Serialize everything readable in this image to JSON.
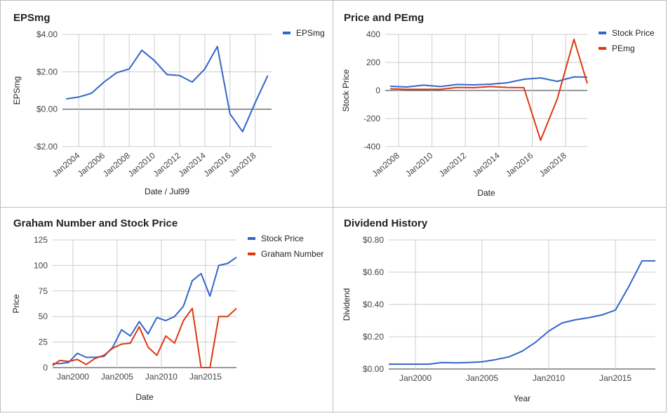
{
  "chart_data": [
    {
      "id": "eps",
      "type": "line",
      "title": "EPSmg",
      "xlabel": "Date / Jul99",
      "ylabel": "EPSmg",
      "xlim": [
        2002.7,
        2019.3
      ],
      "ylim": [
        -2,
        4
      ],
      "yticks": [
        -2,
        0,
        2,
        4
      ],
      "ytick_labels": [
        "-$2.00",
        "$0.00",
        "$2.00",
        "$4.00"
      ],
      "xticks": [
        2004,
        2006,
        2008,
        2010,
        2012,
        2014,
        2016,
        2018
      ],
      "xtick_labels": [
        "Jan2004",
        "Jan2006",
        "Jan2008",
        "Jan2010",
        "Jan2012",
        "Jan2014",
        "Jan2016",
        "Jan2018"
      ],
      "x_grid": true,
      "legend": "top-right",
      "series": [
        {
          "name": "EPSmg",
          "color": "#3366cc",
          "x": [
            2003,
            2004,
            2005,
            2006,
            2007,
            2008,
            2009,
            2010,
            2011,
            2012,
            2013,
            2014,
            2015,
            2016,
            2017,
            2018,
            2019
          ],
          "y": [
            0.55,
            0.65,
            0.85,
            1.45,
            1.95,
            2.15,
            3.15,
            2.6,
            1.85,
            1.8,
            1.45,
            2.15,
            3.35,
            -0.25,
            -1.2,
            0.35,
            1.8
          ]
        }
      ]
    },
    {
      "id": "price_pe",
      "type": "line",
      "title": "Price and PEmg",
      "xlabel": "Date",
      "ylabel": "Stock Price",
      "xlim": [
        2007.2,
        2019.3
      ],
      "ylim": [
        -400,
        400
      ],
      "yticks": [
        -400,
        -200,
        0,
        200,
        400
      ],
      "ytick_labels": [
        "-400",
        "-200",
        "0",
        "200",
        "400"
      ],
      "xticks": [
        2008,
        2010,
        2012,
        2014,
        2016,
        2018
      ],
      "xtick_labels": [
        "Jan2008",
        "Jan2010",
        "Jan2012",
        "Jan2014",
        "Jan2016",
        "Jan2018"
      ],
      "x_grid": true,
      "legend": "top-right",
      "series": [
        {
          "name": "Stock Price",
          "color": "#3366cc",
          "x": [
            2007.5,
            2008.5,
            2009.5,
            2010.5,
            2011.5,
            2012.5,
            2013.5,
            2014.5,
            2015.5,
            2016.5,
            2017.5,
            2018.5,
            2019.3
          ],
          "y": [
            30,
            25,
            38,
            28,
            43,
            40,
            45,
            55,
            80,
            90,
            65,
            97,
            95
          ]
        },
        {
          "name": "PEmg",
          "color": "#dc3912",
          "x": [
            2007.5,
            2008.5,
            2009.5,
            2010.5,
            2011.5,
            2012.5,
            2013.5,
            2014.5,
            2015.5,
            2016.5,
            2017.5,
            2018.5,
            2019.3
          ],
          "y": [
            12,
            8,
            8,
            8,
            22,
            20,
            28,
            22,
            20,
            -355,
            -60,
            365,
            50
          ]
        }
      ]
    },
    {
      "id": "graham",
      "type": "line",
      "title": "Graham Number and Stock Price",
      "xlabel": "Date",
      "ylabel": "Price",
      "xlim": [
        1997.7,
        2018.5
      ],
      "ylim": [
        0,
        125
      ],
      "yticks": [
        0,
        25,
        50,
        75,
        100,
        125
      ],
      "ytick_labels": [
        "0",
        "25",
        "50",
        "75",
        "100",
        "125"
      ],
      "xticks": [
        2000,
        2005,
        2010,
        2015
      ],
      "xtick_labels": [
        "Jan2000",
        "Jan2005",
        "Jan2010",
        "Jan2015"
      ],
      "x_grid": true,
      "legend": "top-right",
      "series": [
        {
          "name": "Stock Price",
          "color": "#3366cc",
          "x": [
            1997.7,
            1998.5,
            1999.5,
            2000.5,
            2001.5,
            2002.5,
            2003.5,
            2004.5,
            2005.5,
            2006.5,
            2007.5,
            2008.5,
            2009.5,
            2010.5,
            2011.5,
            2012.5,
            2013.5,
            2014.5,
            2015.5,
            2016.5,
            2017.5,
            2018.5
          ],
          "y": [
            4,
            4,
            5,
            14,
            10,
            10,
            11,
            20,
            37,
            31,
            45,
            33,
            49,
            46,
            50,
            60,
            85,
            92,
            70,
            100,
            102,
            108
          ]
        },
        {
          "name": "Graham Number",
          "color": "#dc3912",
          "x": [
            1997.7,
            1998.5,
            1999.5,
            2000.5,
            2001.5,
            2002.5,
            2003.5,
            2004.5,
            2005.5,
            2006.5,
            2007.5,
            2008.5,
            2009.5,
            2010.5,
            2011.5,
            2012.5,
            2013.5,
            2014.5,
            2015.5,
            2016.5,
            2017.5,
            2018.5
          ],
          "y": [
            2,
            7,
            6,
            8,
            3,
            9,
            12,
            19,
            23,
            24,
            40,
            20,
            12,
            31,
            24,
            46,
            58,
            0,
            0,
            50,
            50,
            58
          ]
        }
      ]
    },
    {
      "id": "dividend",
      "type": "line",
      "title": "Dividend History",
      "xlabel": "Year",
      "ylabel": "Dividend",
      "xlim": [
        1998,
        2018
      ],
      "ylim": [
        0,
        0.8
      ],
      "yticks": [
        0,
        0.2,
        0.4,
        0.6,
        0.8
      ],
      "ytick_labels": [
        "$0.00",
        "$0.20",
        "$0.40",
        "$0.60",
        "$0.80"
      ],
      "xticks": [
        2000,
        2005,
        2010,
        2015
      ],
      "xtick_labels": [
        "Jan2000",
        "Jan2005",
        "Jan2010",
        "Jan2015"
      ],
      "x_grid": true,
      "legend": "none",
      "series": [
        {
          "name": "Dividend",
          "color": "#3366cc",
          "x": [
            1998,
            1999,
            2000,
            2001,
            2002,
            2003,
            2004,
            2005,
            2006,
            2007,
            2008,
            2009,
            2010,
            2011,
            2012,
            2013,
            2014,
            2015,
            2016,
            2017,
            2018
          ],
          "y": [
            0.03,
            0.03,
            0.03,
            0.03,
            0.04,
            0.038,
            0.04,
            0.045,
            0.058,
            0.075,
            0.11,
            0.165,
            0.235,
            0.285,
            0.305,
            0.318,
            0.335,
            0.365,
            0.51,
            0.67,
            0.67
          ]
        }
      ]
    }
  ]
}
